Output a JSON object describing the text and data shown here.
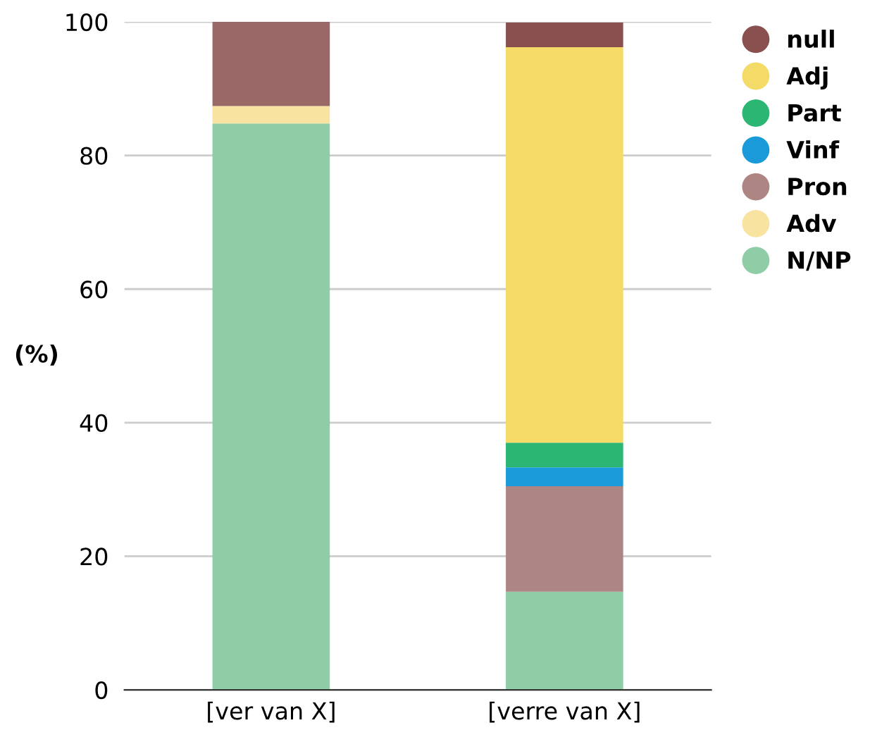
{
  "chart_data": {
    "type": "bar",
    "stacked": true,
    "ylabel": "(%)",
    "categories": [
      "[ver van X]",
      "[verre van X]"
    ],
    "series": [
      {
        "name": "N/NP",
        "color": "#8ecda5",
        "values": [
          84.8,
          14.7
        ]
      },
      {
        "name": "Adv",
        "color": "#f8e4a0",
        "values": [
          2.6,
          0
        ]
      },
      {
        "name": "Pron",
        "color": "#ad8583",
        "colors": [
          "#9b6868",
          "#ad8583"
        ],
        "values": [
          12.6,
          15.8
        ]
      },
      {
        "name": "Vinf",
        "color": "#1a9ad8",
        "values": [
          0,
          2.8
        ]
      },
      {
        "name": "Part",
        "color": "#2bb673",
        "values": [
          0,
          3.7
        ]
      },
      {
        "name": "Adj",
        "color": "#f4da66",
        "values": [
          0,
          59.2
        ]
      },
      {
        "name": "null",
        "color": "#8a5050",
        "values": [
          0,
          3.7
        ]
      }
    ],
    "ylim": [
      0,
      100
    ],
    "yticks": [
      0,
      20,
      40,
      60,
      80,
      100
    ],
    "grid": "y",
    "legend": "top right"
  }
}
